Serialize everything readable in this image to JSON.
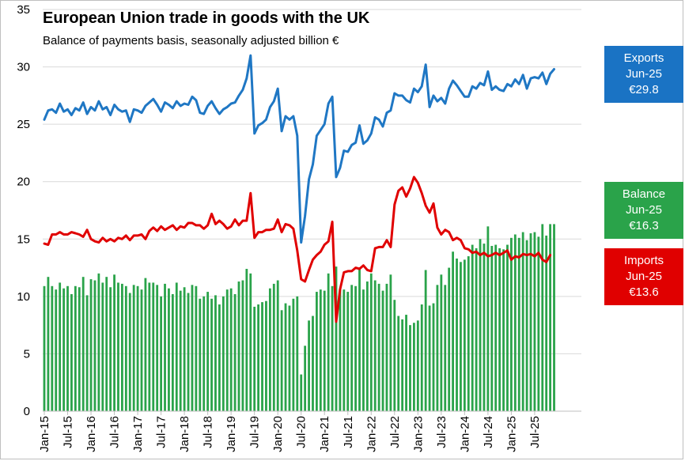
{
  "chart_data": {
    "type": "line",
    "title": "European Union trade in goods with the UK",
    "subtitle": "Balance of payments basis, seasonally adjusted billion €",
    "ylim": [
      0,
      35
    ],
    "yticks": [
      0,
      5,
      10,
      15,
      20,
      25,
      30,
      35
    ],
    "x_start": "Jan-15",
    "x_tick_labels": [
      "Jan-15",
      "Jul-15",
      "Jan-16",
      "Jul-16",
      "Jan-17",
      "Jul-17",
      "Jan-18",
      "Jul-18",
      "Jan-19",
      "Jul-19",
      "Jan-20",
      "Jul-20",
      "Jan-21",
      "Jul-21",
      "Jan-22",
      "Jul-22",
      "Jan-23",
      "Jul-23",
      "Jan-24",
      "Jul-24",
      "Jan-25",
      "Jul-25"
    ],
    "grid": true,
    "colors": {
      "exports": "#1f77c4",
      "imports": "#e00000",
      "balance": "#2aa34a"
    },
    "series": [
      {
        "name": "Exports",
        "kind": "line",
        "values": [
          25.4,
          26.2,
          26.3,
          26.0,
          26.8,
          26.1,
          26.3,
          25.8,
          26.4,
          26.2,
          26.9,
          25.9,
          26.5,
          26.2,
          27.0,
          26.3,
          26.5,
          25.8,
          26.7,
          26.3,
          26.1,
          26.2,
          25.2,
          26.3,
          26.2,
          26.0,
          26.6,
          26.9,
          27.2,
          26.7,
          26.1,
          26.9,
          26.7,
          26.4,
          27.0,
          26.6,
          26.8,
          26.7,
          27.4,
          27.1,
          26.0,
          25.9,
          26.6,
          27.0,
          26.4,
          25.9,
          26.3,
          26.5,
          26.8,
          26.9,
          27.5,
          28.0,
          29.0,
          31.0,
          24.2,
          24.9,
          25.1,
          25.4,
          26.5,
          27.0,
          28.1,
          24.4,
          25.7,
          25.4,
          25.7,
          24.0,
          14.7,
          17.0,
          20.2,
          21.5,
          24.0,
          24.5,
          25.0,
          26.8,
          27.4,
          20.4,
          21.2,
          22.7,
          22.6,
          23.2,
          23.4,
          24.9,
          23.3,
          23.6,
          24.2,
          25.6,
          25.4,
          24.8,
          26.0,
          26.2,
          27.7,
          27.5,
          27.5,
          27.1,
          26.9,
          28.1,
          27.8,
          28.3,
          30.2,
          26.5,
          27.5,
          27.0,
          27.3,
          26.8,
          28.1,
          28.8,
          28.4,
          27.9,
          27.4,
          27.4,
          28.3,
          28.1,
          28.6,
          28.4,
          29.6,
          28.0,
          28.3,
          28.0,
          27.9,
          28.5,
          28.3,
          28.9,
          28.5,
          29.3,
          28.1,
          29.0,
          29.1,
          29.0,
          29.5,
          28.5,
          29.4,
          29.8
        ]
      },
      {
        "name": "Imports",
        "kind": "line",
        "values": [
          14.6,
          14.5,
          15.4,
          15.4,
          15.6,
          15.4,
          15.4,
          15.6,
          15.5,
          15.4,
          15.2,
          15.8,
          15.0,
          14.8,
          14.7,
          15.1,
          14.8,
          15.0,
          14.8,
          15.1,
          15.0,
          15.3,
          14.9,
          15.3,
          15.3,
          15.4,
          15.0,
          15.7,
          16.0,
          15.7,
          16.1,
          15.8,
          16.0,
          16.2,
          15.8,
          16.1,
          16.0,
          16.4,
          16.4,
          16.2,
          16.2,
          15.9,
          16.2,
          17.2,
          16.3,
          16.6,
          16.3,
          15.9,
          16.1,
          16.7,
          16.2,
          16.6,
          16.6,
          19.0,
          15.1,
          15.6,
          15.6,
          15.8,
          15.8,
          15.9,
          16.7,
          15.6,
          16.3,
          16.2,
          15.9,
          14.0,
          11.5,
          11.3,
          12.3,
          13.2,
          13.6,
          13.9,
          14.5,
          14.8,
          16.5,
          7.8,
          10.6,
          12.1,
          12.2,
          12.2,
          12.5,
          12.4,
          12.7,
          12.3,
          12.2,
          14.2,
          14.3,
          14.3,
          14.9,
          14.3,
          18.0,
          19.2,
          19.5,
          18.7,
          19.4,
          20.4,
          19.9,
          19.0,
          17.9,
          17.3,
          18.1,
          16.0,
          15.4,
          15.8,
          15.6,
          14.9,
          15.1,
          14.9,
          14.2,
          14.1,
          13.8,
          13.9,
          13.6,
          13.8,
          13.5,
          13.6,
          13.8,
          13.6,
          13.8,
          14.0,
          13.2,
          13.5,
          13.4,
          13.7,
          13.6,
          13.7,
          13.5,
          13.8,
          13.2,
          13.0,
          13.6
        ]
      },
      {
        "name": "Balance",
        "kind": "bar",
        "values": [
          10.9,
          11.7,
          10.9,
          10.6,
          11.2,
          10.7,
          10.9,
          10.2,
          10.9,
          10.8,
          11.7,
          10.1,
          11.5,
          11.4,
          12.0,
          11.2,
          11.7,
          10.8,
          11.9,
          11.2,
          11.1,
          10.9,
          10.3,
          11.0,
          10.9,
          10.6,
          11.6,
          11.2,
          11.2,
          11.0,
          10.0,
          11.1,
          10.7,
          10.2,
          11.2,
          10.5,
          10.8,
          10.3,
          11.0,
          10.9,
          9.8,
          10.0,
          10.4,
          9.8,
          10.1,
          9.3,
          10.0,
          10.6,
          10.7,
          10.2,
          11.3,
          11.4,
          12.4,
          12.0,
          9.1,
          9.3,
          9.5,
          9.6,
          10.7,
          11.1,
          11.4,
          8.8,
          9.4,
          9.2,
          9.8,
          10.0,
          3.2,
          5.7,
          7.9,
          8.3,
          10.4,
          10.6,
          10.5,
          12.0,
          10.9,
          12.6,
          10.6,
          10.6,
          10.4,
          11.0,
          10.9,
          12.5,
          10.6,
          11.3,
          12.0,
          11.4,
          11.1,
          10.5,
          11.1,
          11.9,
          9.7,
          8.3,
          8.0,
          8.4,
          7.5,
          7.7,
          7.9,
          9.3,
          12.3,
          9.2,
          9.4,
          11.0,
          11.9,
          11.0,
          12.5,
          13.9,
          13.3,
          13.0,
          13.2,
          13.5,
          14.5,
          14.2,
          15.0,
          14.6,
          16.1,
          14.4,
          14.5,
          14.2,
          14.1,
          14.5,
          15.1,
          15.4,
          15.1,
          15.6,
          14.9,
          15.5,
          15.6,
          15.2,
          16.3,
          15.3,
          16.3,
          16.3
        ]
      }
    ],
    "callouts": [
      {
        "name": "Exports",
        "lines": [
          "Exports",
          "Jun-25",
          "€29.8"
        ],
        "color": "#1a73c4"
      },
      {
        "name": "Balance",
        "lines": [
          "Balance",
          "Jun-25",
          "€16.3"
        ],
        "color": "#2aa34a"
      },
      {
        "name": "Imports",
        "lines": [
          "Imports",
          "Jun-25",
          "€13.6"
        ],
        "color": "#e00000"
      }
    ]
  }
}
